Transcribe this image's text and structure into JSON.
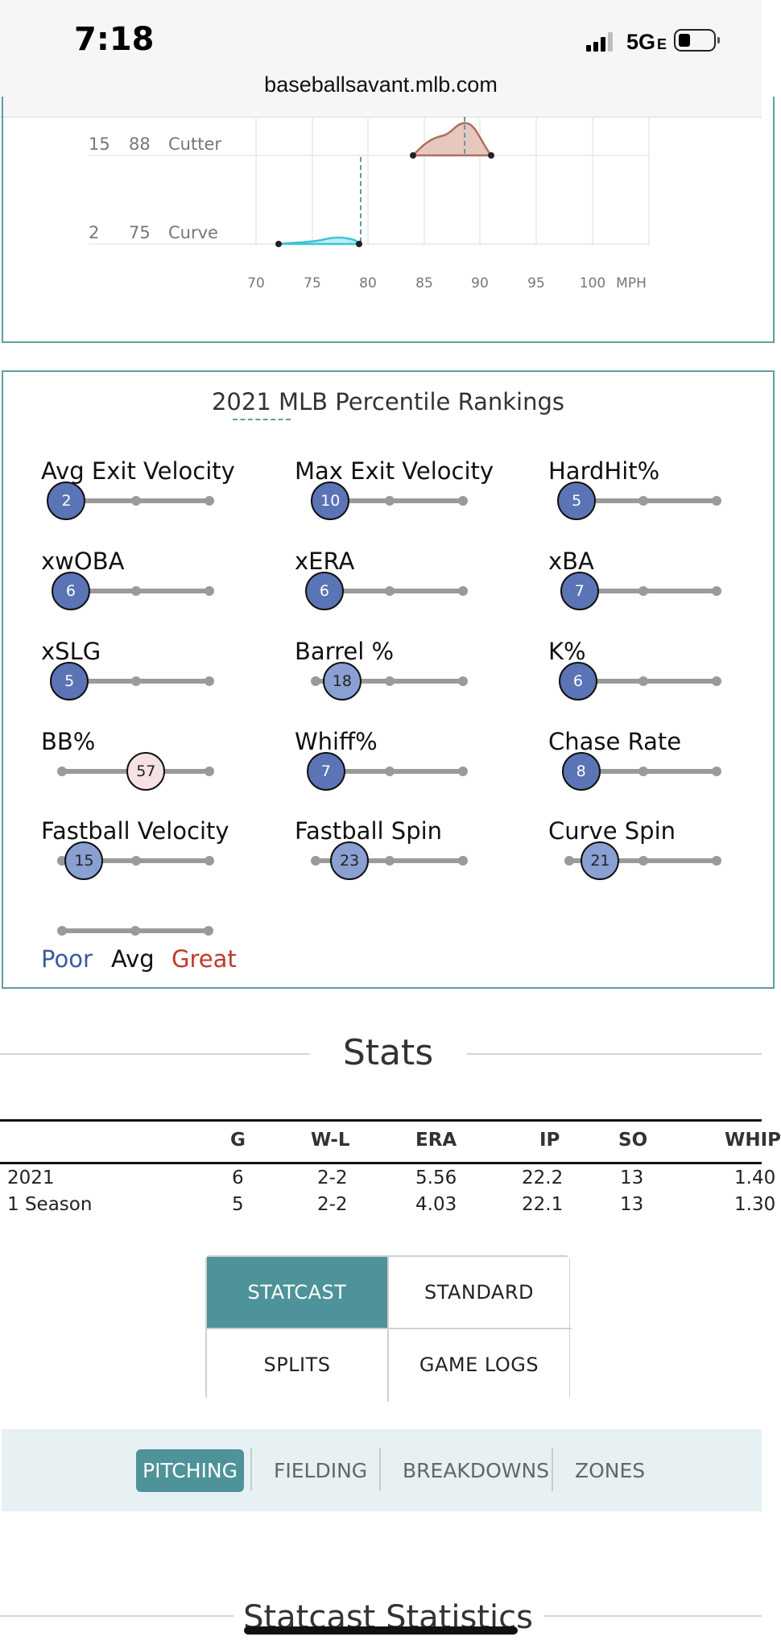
{
  "status_bar": {
    "time": "7:18",
    "network": "5G",
    "network_sub": "E",
    "url": "baseballsavant.mlb.com"
  },
  "velocity_chart": {
    "pitches": [
      {
        "count": "15",
        "mph": "88",
        "name": "Cutter"
      },
      {
        "count": "2",
        "mph": "75",
        "name": "Curve"
      }
    ],
    "mph_ticks": [
      "70",
      "75",
      "80",
      "85",
      "90",
      "95",
      "100"
    ],
    "unit": "MPH",
    "colors": {
      "cutter": "#c98b7c",
      "curve": "#5bc8d6",
      "guide": "#5f9ea0"
    }
  },
  "percentile": {
    "title": "2021 MLB Percentile Rankings",
    "metrics": [
      {
        "label": "Avg Exit Velocity",
        "value": 2
      },
      {
        "label": "Max Exit Velocity",
        "value": 10
      },
      {
        "label": "HardHit%",
        "value": 5
      },
      {
        "label": "xwOBA",
        "value": 6
      },
      {
        "label": "xERA",
        "value": 6
      },
      {
        "label": "xBA",
        "value": 7
      },
      {
        "label": "xSLG",
        "value": 5
      },
      {
        "label": "Barrel %",
        "value": 18
      },
      {
        "label": "K%",
        "value": 6
      },
      {
        "label": "BB%",
        "value": 57
      },
      {
        "label": "Whiff%",
        "value": 7
      },
      {
        "label": "Chase Rate",
        "value": 8
      },
      {
        "label": "Fastball Velocity",
        "value": 15
      },
      {
        "label": "Fastball Spin",
        "value": 23
      },
      {
        "label": "Curve Spin",
        "value": 21
      }
    ],
    "legend": {
      "poor": "Poor",
      "avg": "Avg",
      "great": "Great"
    },
    "colors": {
      "poor": "#3d5a9e",
      "great": "#c0392b",
      "bubble_low": "#5b74b6",
      "bubble_mid": "#8aa0d2",
      "bubble_neutral": "#f6e2e2"
    }
  },
  "stats": {
    "title": "Stats",
    "columns": [
      "G",
      "W-L",
      "ERA",
      "IP",
      "SO",
      "WHIP"
    ],
    "rows": [
      {
        "label": "2021",
        "cells": [
          "6",
          "2-2",
          "5.56",
          "22.2",
          "13",
          "1.40"
        ]
      },
      {
        "label": "1 Season",
        "cells": [
          "5",
          "2-2",
          "4.03",
          "22.1",
          "13",
          "1.30"
        ]
      }
    ]
  },
  "view_buttons": {
    "statcast": "STATCAST",
    "standard": "STANDARD",
    "splits": "SPLITS",
    "game_logs": "GAME LOGS"
  },
  "subnav": {
    "pitching": "PITCHING",
    "fielding": "FIELDING",
    "breakdowns": "BREAKDOWNS",
    "zones": "ZONES"
  },
  "statcast_section": {
    "title": "Statcast Statistics"
  }
}
